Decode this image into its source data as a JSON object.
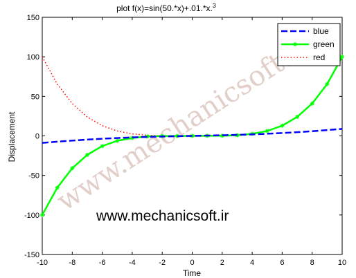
{
  "chart_data": {
    "type": "line",
    "title": "plot f(x)=sin(50.*x)+.01.*x.",
    "title_superscript": "3",
    "xlabel": "Time",
    "ylabel": "Displacement",
    "xlim": [
      -10,
      10
    ],
    "ylim": [
      -150,
      150
    ],
    "xticks": [
      -10,
      -8,
      -6,
      -4,
      -2,
      0,
      2,
      4,
      6,
      8,
      10
    ],
    "yticks": [
      -150,
      -100,
      -50,
      0,
      50,
      100,
      150
    ],
    "grid": false,
    "legend_position": "top-right",
    "x": [
      -10,
      -9,
      -8,
      -7,
      -6,
      -5,
      -4,
      -3,
      -2,
      -1,
      0,
      1,
      2,
      3,
      4,
      5,
      6,
      7,
      8,
      9,
      10
    ],
    "series": [
      {
        "name": "blue",
        "color": "#0000ff",
        "style": "dashed",
        "values": [
          -8.9,
          -7.3,
          -5.9,
          -4.7,
          -3.6,
          -2.7,
          -1.9,
          -1.3,
          -0.8,
          -0.4,
          0.0,
          0.4,
          0.8,
          1.3,
          1.9,
          2.7,
          3.6,
          4.7,
          5.9,
          7.3,
          8.9
        ]
      },
      {
        "name": "green",
        "color": "#00ff00",
        "style": "solid-star",
        "values": [
          -100,
          -65.6,
          -40.9,
          -24.0,
          -12.9,
          -6.2,
          -2.6,
          -0.8,
          -0.2,
          -0.1,
          0.0,
          0.1,
          0.2,
          0.8,
          2.6,
          6.2,
          12.9,
          24.0,
          40.9,
          65.6,
          100
        ]
      },
      {
        "name": "red",
        "color": "#ff0000",
        "style": "dotted",
        "values": [
          100,
          65.6,
          40.9,
          24.0,
          12.9,
          6.2,
          2.6,
          0.8,
          0.2,
          0.1,
          0.0,
          0.1,
          0.2,
          0.8,
          2.6,
          6.2,
          12.9,
          24.0,
          40.9,
          65.6,
          100
        ]
      }
    ],
    "annotations": [
      {
        "text": "www.mechanicsoft.ir",
        "role": "overlay"
      }
    ],
    "watermark": "www.mechanicsoft.ir"
  }
}
